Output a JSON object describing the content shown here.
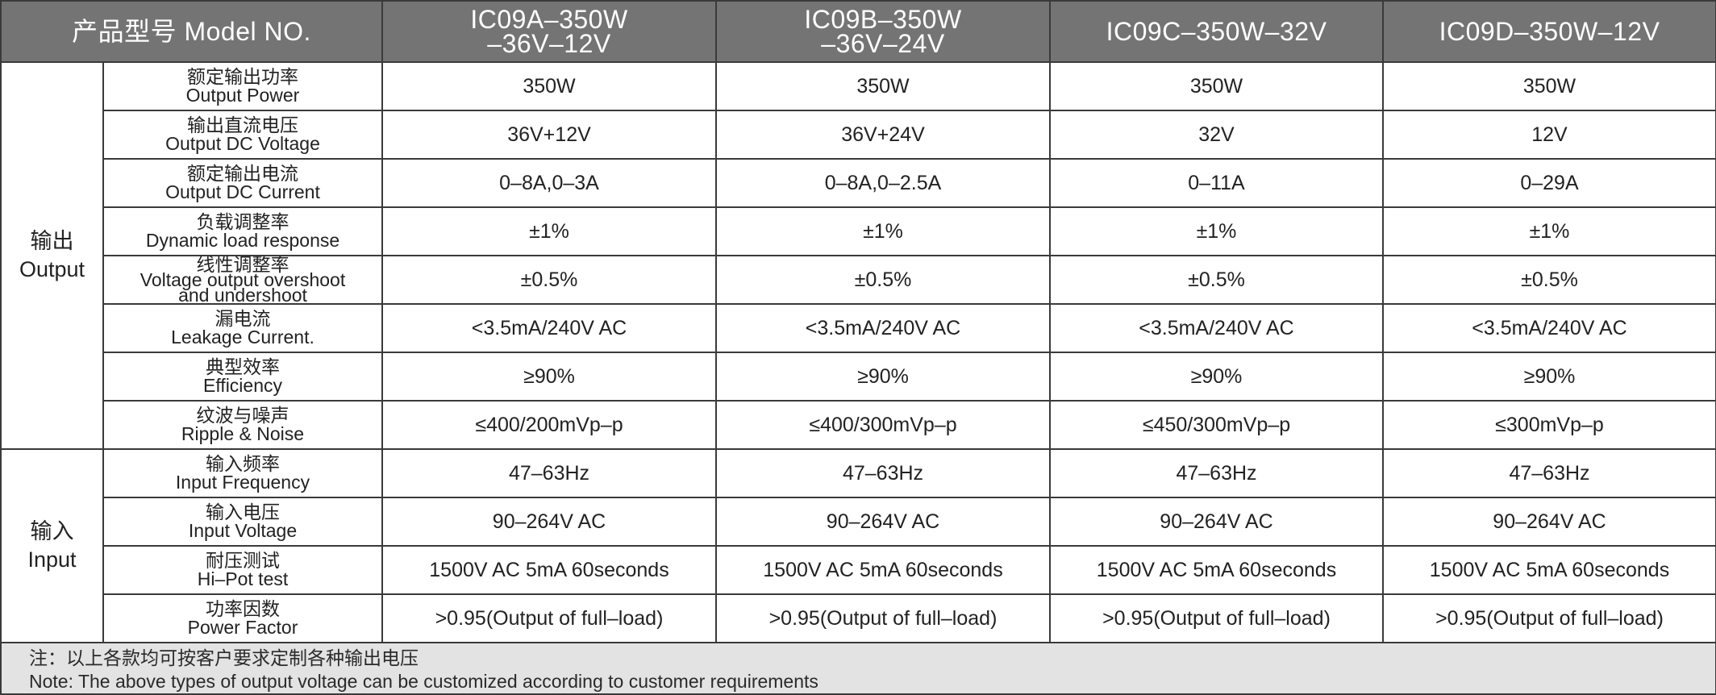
{
  "header": {
    "model_label": "产品型号 Model NO.",
    "models": [
      [
        "IC09A–350W",
        "–36V–12V"
      ],
      [
        "IC09B–350W",
        "–36V–24V"
      ],
      [
        "IC09C–350W–32V"
      ],
      [
        "IC09D–350W–12V"
      ]
    ]
  },
  "groups": [
    {
      "zh": "输出",
      "en": "Output",
      "rows": [
        {
          "param_zh": "额定输出功率",
          "param_en": [
            "Output Power"
          ],
          "values": [
            "350W",
            "350W",
            "350W",
            "350W"
          ]
        },
        {
          "param_zh": "输出直流电压",
          "param_en": [
            "Output DC Voltage"
          ],
          "values": [
            "36V+12V",
            "36V+24V",
            "32V",
            "12V"
          ]
        },
        {
          "param_zh": "额定输出电流",
          "param_en": [
            "Output DC Current"
          ],
          "values": [
            "0–8A,0–3A",
            "0–8A,0–2.5A",
            "0–11A",
            "0–29A"
          ]
        },
        {
          "param_zh": "负载调整率",
          "param_en": [
            "Dynamic load response"
          ],
          "values": [
            "±1%",
            "±1%",
            "±1%",
            "±1%"
          ]
        },
        {
          "param_zh": "线性调整率",
          "param_en": [
            "Voltage output overshoot",
            "and undershoot"
          ],
          "values": [
            "±0.5%",
            "±0.5%",
            "±0.5%",
            "±0.5%"
          ]
        },
        {
          "param_zh": "漏电流",
          "param_en": [
            "Leakage Current."
          ],
          "values": [
            "<3.5mA/240V AC",
            "<3.5mA/240V AC",
            "<3.5mA/240V AC",
            "<3.5mA/240V AC"
          ]
        },
        {
          "param_zh": "典型效率",
          "param_en": [
            "Efficiency"
          ],
          "values": [
            "≥90%",
            "≥90%",
            "≥90%",
            "≥90%"
          ]
        },
        {
          "param_zh": "纹波与噪声",
          "param_en": [
            "Ripple & Noise"
          ],
          "values": [
            "≤400/200mVp–p",
            "≤400/300mVp–p",
            "≤450/300mVp–p",
            "≤300mVp–p"
          ]
        }
      ]
    },
    {
      "zh": "输入",
      "en": "Input",
      "rows": [
        {
          "param_zh": "输入频率",
          "param_en": [
            "Input Frequency"
          ],
          "values": [
            "47–63Hz",
            "47–63Hz",
            "47–63Hz",
            "47–63Hz"
          ]
        },
        {
          "param_zh": "输入电压",
          "param_en": [
            "Input Voltage"
          ],
          "values": [
            "90–264V AC",
            "90–264V AC",
            "90–264V AC",
            "90–264V AC"
          ]
        },
        {
          "param_zh": "耐压测试",
          "param_en": [
            "Hi–Pot test"
          ],
          "values": [
            "1500V AC 5mA 60seconds",
            "1500V AC 5mA 60seconds",
            "1500V AC 5mA 60seconds",
            "1500V AC 5mA 60seconds"
          ]
        },
        {
          "param_zh": "功率因数",
          "param_en": [
            "Power Factor"
          ],
          "values": [
            ">0.95(Output of full–load)",
            ">0.95(Output of full–load)",
            ">0.95(Output of full–load)",
            ">0.95(Output of full–load)"
          ]
        }
      ]
    }
  ],
  "note": {
    "zh": "注：以上各款均可按客户要求定制各种输出电压",
    "en": "Note: The above types of output voltage can be customized according to customer requirements"
  }
}
